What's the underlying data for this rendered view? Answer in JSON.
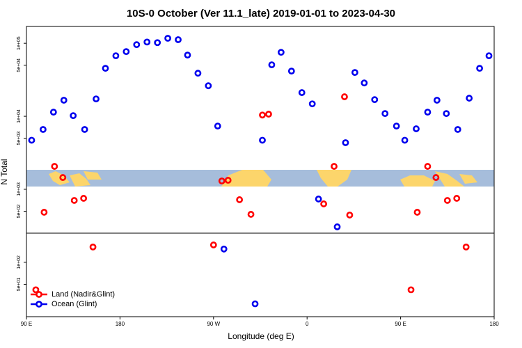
{
  "chart_data": {
    "type": "scatter",
    "title": "10S-0 October (Ver 11.1_late)   2019-01-01 to 2023-04-30",
    "x_label": "Longitude (deg E)",
    "y_label": "N Total",
    "log_y": true,
    "xlim": [
      90,
      540
    ],
    "ylim": [
      18,
      170000
    ],
    "xticks": [
      {
        "value": 90,
        "label": "90 E"
      },
      180,
      {
        "value": 270,
        "label": "90 W"
      },
      {
        "value": 360,
        "label": "0"
      },
      {
        "value": 450,
        "label": "90 E"
      },
      {
        "value": 540,
        "label": "180"
      }
    ],
    "yticks": [
      {
        "value": 50,
        "label": "5e+01"
      },
      {
        "value": 100,
        "label": "1e+02"
      },
      {
        "value": 500,
        "label": "5e+02"
      },
      {
        "value": 1000,
        "label": "1e+03"
      },
      {
        "value": 5000,
        "label": "5e+03"
      },
      {
        "value": 10000,
        "label": "1e+04"
      },
      {
        "value": 50000,
        "label": "5e+04"
      },
      {
        "value": 100000,
        "label": "1e+05"
      }
    ],
    "legend": "lower left",
    "series": [
      {
        "name": "Land (Nadir&Glint)",
        "color": "#ff0000",
        "x": [
          99,
          107,
          117,
          125,
          136,
          145,
          154,
          270,
          278,
          284,
          295,
          306,
          317,
          323,
          376,
          386,
          396,
          401,
          460,
          466,
          476,
          484,
          495,
          504,
          513
        ],
        "values": [
          42,
          485,
          2060,
          1450,
          704,
          752,
          162,
          173,
          1300,
          1330,
          720,
          454,
          10400,
          10700,
          631,
          2060,
          18500,
          444,
          42,
          485,
          2060,
          1450,
          704,
          752,
          162
        ]
      },
      {
        "name": "Ocean (Glint)",
        "color": "#0000ee",
        "x": [
          95,
          106,
          116,
          126,
          135,
          146,
          157,
          166,
          176,
          186,
          196,
          206,
          216,
          226,
          236,
          245,
          255,
          265,
          274,
          280,
          310,
          317,
          326,
          335,
          345,
          355,
          365,
          371,
          389,
          397,
          406,
          415,
          425,
          435,
          446,
          454,
          465,
          476,
          485,
          494,
          505,
          516,
          526,
          535
        ],
        "values": [
          4700,
          6600,
          11400,
          16600,
          10200,
          6600,
          17300,
          45400,
          67400,
          76900,
          95700,
          104000,
          102000,
          117000,
          112000,
          68900,
          38900,
          26200,
          7350,
          152,
          27,
          4700,
          50700,
          75200,
          41600,
          21100,
          14800,
          736,
          306,
          4350,
          39800,
          28600,
          16900,
          10900,
          7350,
          4700,
          6740,
          11400,
          16600,
          10900,
          6600,
          17700,
          45400,
          67400
        ]
      }
    ]
  }
}
